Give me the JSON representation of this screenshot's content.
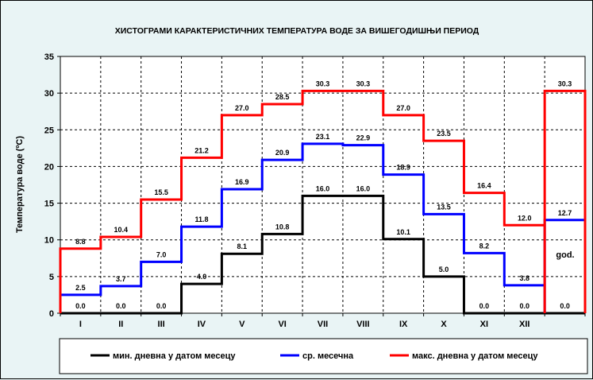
{
  "chart_data": {
    "type": "line",
    "title": "ХИСТОГРАМИ КАРАКТЕРИСТИЧНИХ ТЕМПЕРАТУРА ВОДЕ ЗА ВИШЕГОДИШЊИ ПЕРИОД",
    "ylabel": "Температура воде  (ºC)",
    "xlabel": "",
    "ylim": [
      0,
      35
    ],
    "yticks": [
      0,
      5,
      10,
      15,
      20,
      25,
      30,
      35
    ],
    "grid": true,
    "legend_position": "bottom",
    "categories": [
      "I",
      "II",
      "III",
      "IV",
      "V",
      "VI",
      "VII",
      "VIII",
      "IX",
      "X",
      "XI",
      "XII"
    ],
    "annual_label": "god.",
    "series": [
      {
        "name": "мин. дневна у датом месецу",
        "color": "#000000",
        "values": [
          0.0,
          0.0,
          0.0,
          4.0,
          8.1,
          10.8,
          16.0,
          16.0,
          10.1,
          5.0,
          0.0,
          0.0
        ],
        "annual": 0.0
      },
      {
        "name": "ср. месечна",
        "color": "#0000ff",
        "values": [
          2.5,
          3.7,
          7.0,
          11.8,
          16.9,
          20.9,
          23.1,
          22.9,
          18.9,
          13.5,
          8.2,
          3.8
        ],
        "annual": 12.7
      },
      {
        "name": "макс. дневна у датом месецу",
        "color": "#ff0000",
        "values": [
          8.8,
          10.4,
          15.5,
          21.2,
          27.0,
          28.5,
          30.3,
          30.3,
          27.0,
          23.5,
          16.4,
          12.0
        ],
        "annual": 30.3
      }
    ]
  }
}
